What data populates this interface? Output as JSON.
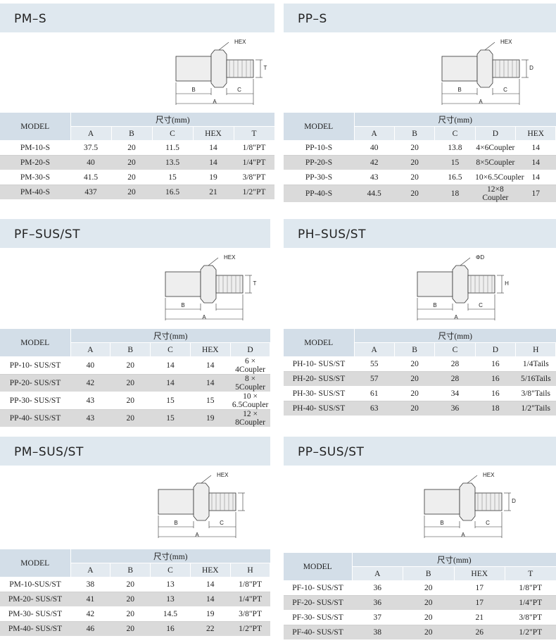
{
  "panels": [
    {
      "title": "PM–S",
      "drawing_labels": [
        "HEX",
        "T",
        "B",
        "C",
        "A"
      ],
      "table": {
        "model_header": "MODEL",
        "group_header": "尺寸(mm)",
        "columns": [
          "A",
          "B",
          "C",
          "HEX",
          "T"
        ],
        "rows": [
          [
            "PM-10-S",
            "37.5",
            "20",
            "11.5",
            "14",
            "1/8\"PT"
          ],
          [
            "PM-20-S",
            "40",
            "20",
            "13.5",
            "14",
            "1/4\"PT"
          ],
          [
            "PM-30-S",
            "41.5",
            "20",
            "15",
            "19",
            "3/8\"PT"
          ],
          [
            "PM-40-S",
            "437",
            "20",
            "16.5",
            "21",
            "1/2\"PT"
          ]
        ]
      }
    },
    {
      "title": "PP–S",
      "drawing_labels": [
        "HEX",
        "D",
        "B",
        "C",
        "A"
      ],
      "table": {
        "model_header": "MODEL",
        "group_header": "尺寸(mm)",
        "columns": [
          "A",
          "B",
          "C",
          "D",
          "HEX"
        ],
        "rows": [
          [
            "PP-10-S",
            "40",
            "20",
            "13.8",
            "4×6Coupler",
            "14"
          ],
          [
            "PP-20-S",
            "42",
            "20",
            "15",
            "8×5Coupler",
            "14"
          ],
          [
            "PP-30-S",
            "43",
            "20",
            "16.5",
            "10×6.5Coupler",
            "14"
          ],
          [
            "PP-40-S",
            "44.5",
            "20",
            "18",
            "12×8 Coupler",
            "17"
          ]
        ]
      }
    },
    {
      "title": "PF–SUS/ST",
      "drawing_labels": [
        "HEX",
        "T",
        "B",
        "A"
      ],
      "table": {
        "model_header": "MODEL",
        "group_header": "尺寸(mm)",
        "columns": [
          "A",
          "B",
          "C",
          "HEX",
          "D"
        ],
        "rows": [
          [
            "PP-10- SUS/ST",
            "40",
            "20",
            "14",
            "14",
            "6 × 4Coupler"
          ],
          [
            "PP-20- SUS/ST",
            "42",
            "20",
            "14",
            "14",
            "8 × 5Coupler"
          ],
          [
            "PP-30- SUS/ST",
            "43",
            "20",
            "15",
            "15",
            "10 × 6.5Coupler"
          ],
          [
            "PP-40- SUS/ST",
            "43",
            "20",
            "15",
            "19",
            "12 × 8Coupler"
          ]
        ]
      }
    },
    {
      "title": "PH–SUS/ST",
      "drawing_labels": [
        "ΦD",
        "H",
        "B",
        "C",
        "A"
      ],
      "table": {
        "model_header": "MODEL",
        "group_header": "尺寸(mm)",
        "columns": [
          "A",
          "B",
          "C",
          "D",
          "H"
        ],
        "rows": [
          [
            "PH-10- SUS/ST",
            "55",
            "20",
            "28",
            "16",
            "1/4Tails"
          ],
          [
            "PH-20- SUS/ST",
            "57",
            "20",
            "28",
            "16",
            "5/16Tails"
          ],
          [
            "PH-30- SUS/ST",
            "61",
            "20",
            "34",
            "16",
            "3/8\"Tails"
          ],
          [
            "PH-40- SUS/ST",
            "63",
            "20",
            "36",
            "18",
            "1/2\"Tails"
          ]
        ]
      }
    },
    {
      "title": "PM–SUS/ST",
      "drawing_labels": [
        "HEX",
        "B",
        "C",
        "A"
      ],
      "table": {
        "model_header": "MODEL",
        "group_header": "尺寸(mm)",
        "columns": [
          "A",
          "B",
          "C",
          "HEX",
          "H"
        ],
        "rows": [
          [
            "PM-10-SUS/ST",
            "38",
            "20",
            "13",
            "14",
            "1/8\"PT"
          ],
          [
            "PM-20- SUS/ST",
            "41",
            "20",
            "13",
            "14",
            "1/4\"PT"
          ],
          [
            "PM-30- SUS/ST",
            "42",
            "20",
            "14.5",
            "19",
            "3/8\"PT"
          ],
          [
            "PM-40- SUS/ST",
            "46",
            "20",
            "16",
            "22",
            "1/2\"PT"
          ]
        ]
      }
    },
    {
      "title": "PP–SUS/ST",
      "drawing_labels": [
        "HEX",
        "D",
        "B",
        "C",
        "A"
      ],
      "table": {
        "model_header": "MODEL",
        "group_header": "尺寸(mm)",
        "columns": [
          "A",
          "B",
          "HEX",
          "T"
        ],
        "rows": [
          [
            "PF-10- SUS/ST",
            "36",
            "20",
            "17",
            "1/8\"PT"
          ],
          [
            "PF-20- SUS/ST",
            "36",
            "20",
            "17",
            "1/4\"PT"
          ],
          [
            "PF-30- SUS/ST",
            "37",
            "20",
            "21",
            "3/8\"PT"
          ],
          [
            "PF-40- SUS/ST",
            "38",
            "20",
            "26",
            "1/2\"PT"
          ]
        ]
      }
    }
  ]
}
